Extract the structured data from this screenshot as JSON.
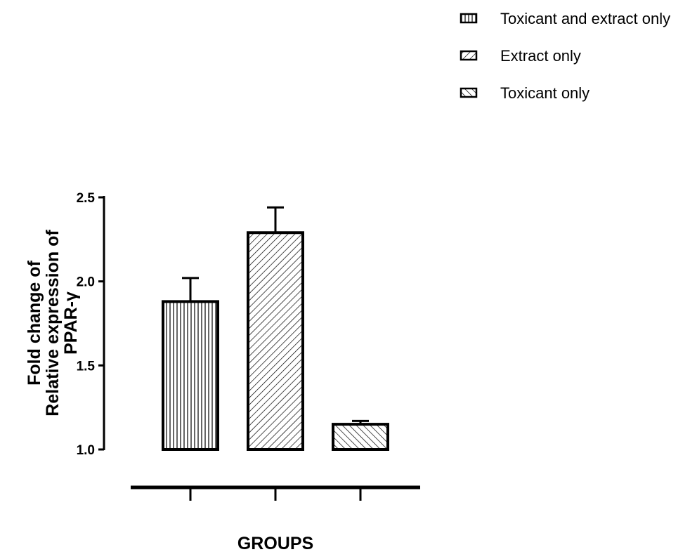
{
  "chart_data": {
    "type": "bar",
    "categories": [
      "Toxicant and extract only",
      "Extract only",
      "Toxicant only"
    ],
    "values": [
      1.88,
      2.29,
      1.15
    ],
    "errors": [
      0.14,
      0.15,
      0.02
    ],
    "patterns": [
      "vertical",
      "diag-right",
      "diag-left"
    ],
    "xlabel": "GROUPS",
    "ylabel_lines": [
      "Fold change of",
      "Relative expression of",
      "PPAR-γ"
    ],
    "ylim": [
      1.0,
      2.5
    ],
    "yticks": [
      "1.0",
      "1.5",
      "2.0",
      "2.5"
    ],
    "legend_position": "top-right",
    "grid": false
  }
}
